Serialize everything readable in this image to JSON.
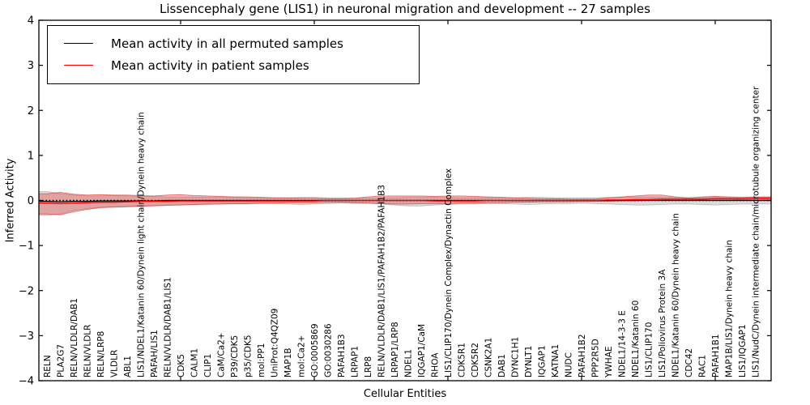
{
  "figure": {
    "title": "Lissencephaly gene (LIS1) in neuronal migration and development -- 27 samples"
  },
  "legend": {
    "position": "upper left",
    "items": [
      {
        "label": "Mean activity in all permuted samples",
        "color": "#000000"
      },
      {
        "label": "Mean activity in patient samples",
        "color": "#ff0000"
      }
    ]
  },
  "axes": {
    "xlabel": "Cellular Entities",
    "ylabel": "Inferred Activity",
    "ylim": [
      -4,
      4
    ],
    "yticks": [
      4,
      3,
      2,
      1,
      0,
      -1,
      -2,
      -3,
      -4
    ],
    "x_major_tick_indices": [
      10,
      20,
      30,
      40,
      50
    ],
    "grid": false
  },
  "colors": {
    "permuted_line": "#000000",
    "patient_line": "#ff0000",
    "patient_band_fill": "rgba(235,40,40,0.32)",
    "patient_band_edge": "rgba(210,20,20,0.55)",
    "permuted_band_fill": "rgba(130,130,130,0.28)",
    "zero_line": "#000000"
  },
  "chart_data": {
    "type": "line",
    "title": "Lissencephaly gene (LIS1) in neuronal migration and development -- 27 samples",
    "xlabel": "Cellular Entities",
    "ylabel": "Inferred Activity",
    "ylim": [
      -4,
      4
    ],
    "legend_position": "upper left",
    "grid": false,
    "categories": [
      "RELN",
      "PLA2G7",
      "RELN/VLDLR/DAB1",
      "RELN/VLDLR",
      "RELN/LRP8",
      "VLDLR",
      "ABL1",
      "LIS1/NDEL1/Katanin 60/Dynein light chain/Dynein heavy chain",
      "PAFAH/LIS1",
      "RELN/VLDLR/DAB1/LIS1",
      "CDK5",
      "CALM1",
      "CLIP1",
      "CaM/Ca2+",
      "P39/CDK5",
      "p35/CDK5",
      "mol:PP1",
      "UniProt:Q4QZ09",
      "MAP1B",
      "mol:Ca2+",
      "GO:0005869",
      "GO:0030286",
      "PAFAH1B3",
      "LRPAP1",
      "LRP8",
      "RELN/VLDLR/DAB1/LIS1/PAFAH1B2/PAFAH1B3",
      "LRPAP1/LRP8",
      "NDEL1",
      "IQGAP1/CaM",
      "RHOA",
      "LIS1/CLIP170/Dynein Complex/Dynactin Complex",
      "CDK5R1",
      "CDK5R2",
      "CSNK2A1",
      "DAB1",
      "DYNC1H1",
      "DYNLT1",
      "IQGAP1",
      "KATNA1",
      "NUDC",
      "PAFAH1B2",
      "PPP2R5D",
      "YWHAE",
      "NDEL1/14-3-3 E",
      "NDEL1/Katanin 60",
      "LIS1/CLIP170",
      "LIS1/Poliovirus Protein 3A",
      "NDEL1/Katanin 60/Dynein heavy chain",
      "CDC42",
      "RAC1",
      "PAFAH1B1",
      "MAP1B/LIS1/Dynein heavy chain",
      "LIS1/IQGAP1",
      "LIS1/NudC/Dynein intermediate chain/microtubule organizing center"
    ],
    "series": [
      {
        "name": "Mean activity in all permuted samples",
        "color": "#000000",
        "values": [
          -0.02,
          -0.03,
          -0.02,
          -0.02,
          -0.01,
          -0.01,
          -0.01,
          -0.01,
          -0.01,
          0,
          0,
          0,
          0,
          0,
          0,
          0,
          0,
          0,
          0,
          0,
          0,
          0,
          0,
          0,
          0,
          0,
          0,
          0,
          0,
          0,
          0,
          0,
          0,
          0,
          0,
          0,
          0,
          0,
          0,
          0,
          0,
          0,
          0,
          0,
          0,
          0,
          0,
          0,
          0,
          0,
          0,
          0,
          0,
          0
        ],
        "band_upper": [
          0.2,
          0.15,
          0.12,
          0.1,
          0.1,
          0.11,
          0.1,
          0.09,
          0.09,
          0.08,
          0.08,
          0.08,
          0.07,
          0.07,
          0.07,
          0.06,
          0.06,
          0.06,
          0.06,
          0.07,
          0.07,
          0.06,
          0.06,
          0.05,
          0.05,
          0.06,
          0.06,
          0.07,
          0.07,
          0.07,
          0.07,
          0.06,
          0.06,
          0.06,
          0.06,
          0.06,
          0.07,
          0.07,
          0.06,
          0.06,
          0.06,
          0.06,
          0.07,
          0.07,
          0.08,
          0.08,
          0.08,
          0.07,
          0.07,
          0.07,
          0.08,
          0.07,
          0.07,
          0.07
        ],
        "band_lower": [
          -0.33,
          -0.3,
          -0.22,
          -0.18,
          -0.15,
          -0.14,
          -0.13,
          -0.12,
          -0.11,
          -0.1,
          -0.1,
          -0.09,
          -0.09,
          -0.08,
          -0.08,
          -0.08,
          -0.07,
          -0.07,
          -0.08,
          -0.09,
          -0.08,
          -0.07,
          -0.06,
          -0.06,
          -0.06,
          -0.08,
          -0.1,
          -0.12,
          -0.12,
          -0.1,
          -0.09,
          -0.08,
          -0.08,
          -0.07,
          -0.07,
          -0.08,
          -0.09,
          -0.08,
          -0.07,
          -0.07,
          -0.06,
          -0.07,
          -0.08,
          -0.09,
          -0.1,
          -0.1,
          -0.09,
          -0.08,
          -0.08,
          -0.09,
          -0.1,
          -0.09,
          -0.08,
          -0.08
        ]
      },
      {
        "name": "Mean activity in patient samples",
        "color": "#ff0000",
        "values": [
          -0.06,
          -0.07,
          -0.06,
          -0.05,
          -0.04,
          -0.04,
          -0.03,
          -0.02,
          -0.02,
          -0.02,
          -0.01,
          -0.01,
          -0.01,
          -0.01,
          -0.01,
          -0.01,
          -0.01,
          -0.01,
          -0.01,
          -0.01,
          -0.01,
          0,
          0,
          0,
          0,
          0,
          0,
          0,
          0,
          -0.01,
          -0.01,
          -0.01,
          -0.01,
          0,
          0,
          0,
          0,
          0,
          0,
          0,
          0,
          0,
          0.01,
          0.01,
          0.02,
          0.02,
          0.03,
          0.03,
          0.03,
          0.03,
          0.04,
          0.04,
          0.04,
          0.05
        ],
        "band_upper": [
          0.15,
          0.18,
          0.14,
          0.12,
          0.13,
          0.12,
          0.12,
          0.11,
          0.1,
          0.12,
          0.13,
          0.11,
          0.1,
          0.09,
          0.08,
          0.08,
          0.07,
          0.06,
          0.06,
          0.05,
          0.05,
          0.04,
          0.04,
          0.05,
          0.08,
          0.1,
          0.1,
          0.1,
          0.1,
          0.09,
          0.1,
          0.1,
          0.09,
          0.08,
          0.07,
          0.06,
          0.05,
          0.04,
          0.04,
          0.03,
          0.03,
          0.03,
          0.06,
          0.08,
          0.1,
          0.12,
          0.12,
          0.08,
          0.05,
          0.08,
          0.09,
          0.08,
          0.07,
          0.08
        ],
        "band_lower": [
          -0.3,
          -0.32,
          -0.25,
          -0.2,
          -0.16,
          -0.15,
          -0.14,
          -0.13,
          -0.12,
          -0.11,
          -0.1,
          -0.09,
          -0.08,
          -0.08,
          -0.07,
          -0.07,
          -0.06,
          -0.06,
          -0.05,
          -0.05,
          -0.05,
          -0.04,
          -0.04,
          -0.05,
          -0.06,
          -0.07,
          -0.08,
          -0.08,
          -0.07,
          -0.07,
          -0.07,
          -0.06,
          -0.06,
          -0.05,
          -0.05,
          -0.04,
          -0.04,
          -0.03,
          -0.03,
          -0.03,
          -0.02,
          -0.02,
          -0.02,
          -0.01,
          -0.01,
          0,
          0,
          0,
          0,
          0.01,
          0.01,
          0.01,
          0.02,
          0.02
        ]
      }
    ],
    "zero_reference_line": 0
  }
}
